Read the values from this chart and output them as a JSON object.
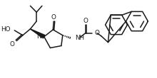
{
  "bg_color": "#ffffff",
  "line_color": "#1a1a1a",
  "lw": 1.1,
  "fs": 5.8,
  "fig_w": 2.22,
  "fig_h": 1.1
}
